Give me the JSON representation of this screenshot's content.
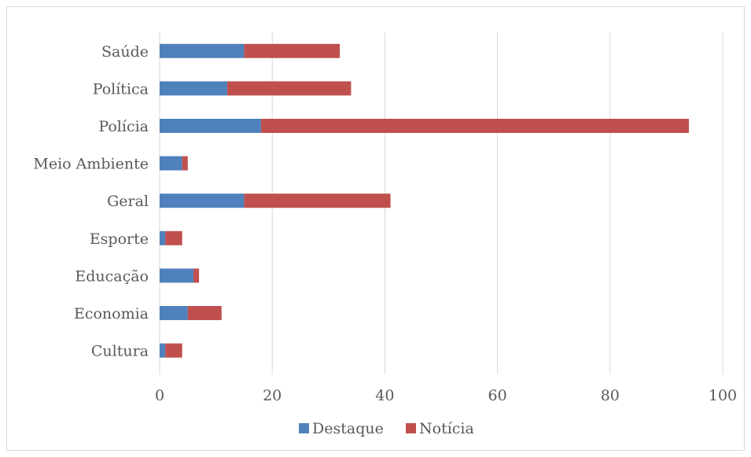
{
  "chart_data": {
    "type": "bar",
    "orientation": "horizontal",
    "stacked": true,
    "categories": [
      "Saúde",
      "Política",
      "Polícia",
      "Meio Ambiente",
      "Geral",
      "Esporte",
      "Educação",
      "Economia",
      "Cultura"
    ],
    "series": [
      {
        "name": "Destaque",
        "color": "#4f81bd",
        "values": [
          15,
          12,
          18,
          4,
          15,
          1,
          6,
          5,
          1
        ]
      },
      {
        "name": "Notícia",
        "color": "#c0504d",
        "values": [
          17,
          22,
          76,
          1,
          26,
          3,
          1,
          6,
          3
        ]
      }
    ],
    "xlim": [
      0,
      100
    ],
    "xticks": [
      "0",
      "20",
      "40",
      "60",
      "80",
      "100"
    ],
    "grid": "vertical",
    "legend": "bottom"
  }
}
